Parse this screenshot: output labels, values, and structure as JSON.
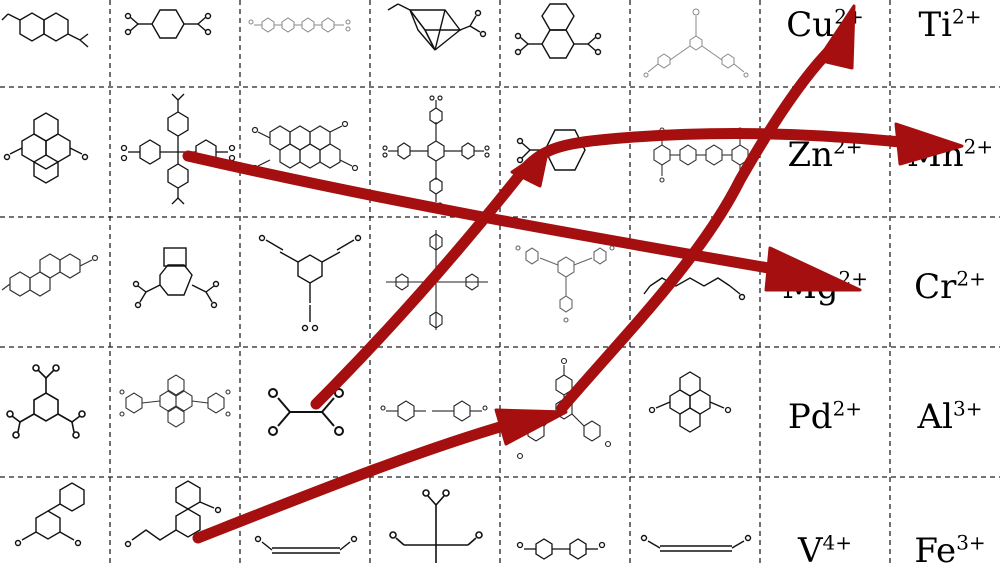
{
  "figure": {
    "description_role": "linker-metal grid",
    "colors": {
      "grid_line": "#222222",
      "molecule_dark": "#111111",
      "molecule_light": "#777777",
      "arrow": "#a60f0f",
      "background": "#ffffff"
    }
  },
  "metals": [
    {
      "symbol": "Cu",
      "charge": "2+"
    },
    {
      "symbol": "Ti",
      "charge": "2+"
    },
    {
      "symbol": "Zn",
      "charge": "2+"
    },
    {
      "symbol": "Mn",
      "charge": "2+"
    },
    {
      "symbol": "Mg",
      "charge": "2+"
    },
    {
      "symbol": "Cr",
      "charge": "2+"
    },
    {
      "symbol": "Pd",
      "charge": "2+"
    },
    {
      "symbol": "Al",
      "charge": "3+"
    },
    {
      "symbol": "V",
      "charge": "4+"
    },
    {
      "symbol": "Fe",
      "charge": "3+"
    }
  ],
  "linkers": [
    "naphthalene-dicarboxylate-icon",
    "terephthalate-icon",
    "quaterphenyl-dicarboxylate-icon",
    "cubane-dicarboxylate-icon",
    "tetrahydronaphthalene-dicarboxylate-icon",
    "triaryl-tricarboxylate-icon",
    "anthracene-dicarboxylate-icon",
    "tetraphenylmethane-tetracarboxylate-icon",
    "coronene-tetracarboxylate-icon",
    "tetra-alkynyl-tetracarboxylate-icon",
    "cyclohexyl-dicarboxylate-icon",
    "terphenyl-tetracarboxylate-icon",
    "chrysene-dicarboxylate-icon",
    "benzocyclobutene-dicarboxylate-icon",
    "triethynylbenzene-tricarboxylate-icon",
    "tetra-alkynyl-tetracarboxylate-icon",
    "triethynyl-tricarboxylate-icon",
    "muconate-icon",
    "trimesate-icon",
    "anthracene-tetracarboxylate-icon",
    "oxalate-icon",
    "azobenzene-dicarboxylate-icon",
    "triphenylbenzene-tricarboxylate-icon",
    "pyrene-dicarboxylate-icon",
    "phenyl-biphenyl-dicarboxylate-icon",
    "naphthyl-acrylate-icon",
    "butynedioate-icon",
    "methanetetracarboxylate-icon",
    "biphenyl-dicarboxylate-icon",
    "hexadiynedioate-icon"
  ],
  "arrows": [
    {
      "from": "tetraphenylmethane-tetracarboxylate",
      "to": "Mg2+"
    },
    {
      "from": "oxalate",
      "to": "Zn2+ then Mn2+"
    },
    {
      "from": "triphenylbenzene-tricarboxylate",
      "to": "Cu2+"
    },
    {
      "from": "naphthyl-acrylate",
      "to": "triphenylbenzene-tricarboxylate"
    }
  ]
}
